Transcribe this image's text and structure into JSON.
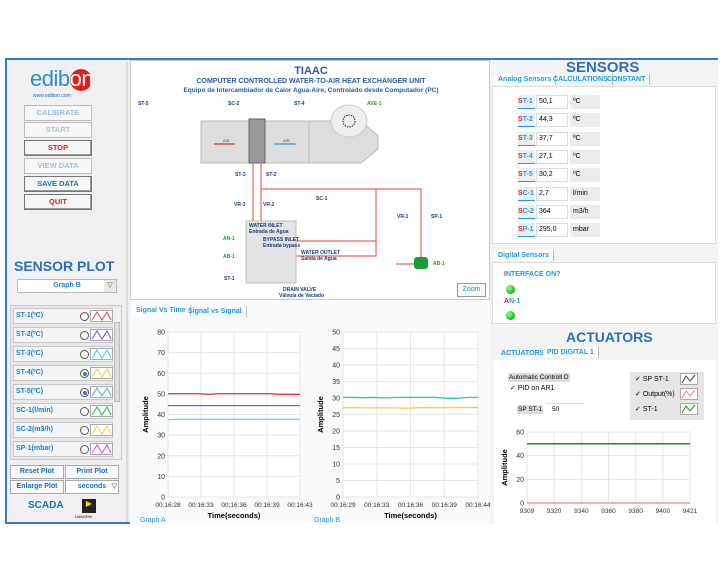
{
  "left": {
    "logo": {
      "text_a": "edib",
      "text_b": "on",
      "url": "www.edibon.com"
    },
    "buttons": [
      {
        "label": "CALIBRATE",
        "enabled": false,
        "color": "#9bbfe0"
      },
      {
        "label": "START",
        "enabled": false,
        "color": "#a8d0b0"
      },
      {
        "label": "STOP",
        "enabled": true,
        "color": "#e0201c"
      },
      {
        "label": "VIEW DATA",
        "enabled": false,
        "color": "#9bbfe0"
      },
      {
        "label": "SAVE DATA",
        "enabled": true,
        "color": "#1a6fbf"
      },
      {
        "label": "QUIT",
        "enabled": true,
        "color": "#e0201c"
      }
    ],
    "sensor_plot_title": "SENSOR PLOT",
    "graph_select": "Graph B",
    "plot_items": [
      {
        "label": "ST-1(ºC)",
        "selected": false,
        "color": "#ff4040"
      },
      {
        "label": "ST-2(ºC)",
        "selected": false,
        "color": "#6a5ae0"
      },
      {
        "label": "ST-3(ºC)",
        "selected": false,
        "color": "#30d0e0"
      },
      {
        "label": "ST-4(ºC)",
        "selected": true,
        "color": "#f0d040"
      },
      {
        "label": "ST-5(ºC)",
        "selected": true,
        "color": "#30c0c0"
      },
      {
        "label": "SC-1(l/min)",
        "selected": false,
        "color": "#20c040"
      },
      {
        "label": "SC-2(m3/h)",
        "selected": false,
        "color": "#e0e030"
      },
      {
        "label": "SP-1(mbar)",
        "selected": false,
        "color": "#e040e0"
      }
    ],
    "reset_plot": "Reset Plot",
    "print_plot": "Print Plot",
    "enlarge_plot": "Enlarge Plot",
    "time_unit": "seconds",
    "scada_logo": "SCADA",
    "labview_logo": "LabVIEW"
  },
  "diagram": {
    "title": "TIAAC",
    "subtitle": "COMPUTER CONTROLLED WATER-TO-AIR HEAT EXCHANGER UNIT",
    "subtitle_es": "Equipo de Intercambiador de Calor Agua-Aire, Controlado desde Computador (PC)",
    "labels": {
      "st5": "ST-5",
      "sc2": "SC-2",
      "st4": "ST-4",
      "ave1": "AVE-1",
      "air1": "AIR",
      "air2": "AIR",
      "st3": "ST-3",
      "st2": "ST-2",
      "sc1": "SC-1",
      "vr3": "VR-3",
      "vr2": "VR-2",
      "vr1": "VR-1",
      "sp1": "SP-1",
      "an1": "AN-1",
      "ab1a": "AB-1",
      "st1": "ST-1",
      "ab1b": "AB-1",
      "water_inlet": "WATER INLET",
      "water_inlet_es": "Entrada de Agua",
      "bypass": "BYPASS INLET",
      "bypass_es": "Entrada bypass",
      "water_outlet": "WATER OUTLET",
      "water_outlet_es": "Salida de Agua",
      "drain": "DRAIN VALVE",
      "drain_es": "Válvula de Vaciado"
    },
    "zoom_button": "Zoom"
  },
  "graph_tabs": [
    "Signal Vs Time",
    "Signal vs Signal"
  ],
  "chart_data": [
    {
      "type": "line",
      "name": "Graph A",
      "xlabel": "Time(seconds)",
      "ylabel": "Amplitude",
      "ylim": [
        0,
        80
      ],
      "yticks": [
        0,
        10,
        20,
        30,
        40,
        50,
        60,
        70,
        80
      ],
      "xticks": [
        "00:16:28",
        "00:16:33",
        "00:16:36",
        "00:16:39",
        "00:16:43"
      ],
      "grid": true,
      "series": [
        {
          "color": "#e84040",
          "values": [
            50.1,
            50.1,
            50.1,
            50.1,
            49.8,
            50.1,
            50.1,
            50.1,
            50.1,
            50.1,
            50.1,
            49.8,
            49.8,
            49.8
          ]
        },
        {
          "color": "#6a6ae8",
          "values": [
            44.3,
            44.3,
            44.3,
            44.3,
            44.3,
            44.3,
            44.3,
            44.3,
            44.3,
            44.3,
            44.3,
            44.3,
            44.3,
            44.3
          ]
        },
        {
          "color": "#50e0f0",
          "values": [
            37.5,
            37.7,
            37.7,
            37.7,
            37.7,
            37.7,
            37.7,
            37.7,
            37.7,
            37.7,
            37.7,
            37.7,
            37.7,
            37.7
          ]
        }
      ]
    },
    {
      "type": "line",
      "name": "Graph B",
      "xlabel": "Time(seconds)",
      "ylabel": "Amplitude",
      "ylim": [
        0,
        50
      ],
      "yticks": [
        0,
        5,
        10,
        15,
        20,
        25,
        30,
        35,
        40,
        45,
        50
      ],
      "xticks": [
        "00:16:29",
        "00:16:33",
        "00:16:36",
        "00:16:39",
        "00:16:44"
      ],
      "grid": true,
      "series": [
        {
          "color": "#30c8b8",
          "values": [
            30.2,
            30.2,
            30.1,
            30.2,
            30.0,
            30.2,
            30.2,
            30.2,
            30.2,
            30.2,
            29.9,
            29.9,
            30.2,
            30.2
          ]
        },
        {
          "color": "#f0d040",
          "values": [
            27.0,
            27.1,
            27.0,
            27.0,
            27.0,
            27.0,
            26.9,
            27.0,
            27.1,
            27.0,
            27.1,
            27.1,
            27.1,
            27.1
          ]
        }
      ]
    },
    {
      "type": "line",
      "name": "PID",
      "ylabel": "Amplitude",
      "ylim": [
        0,
        60
      ],
      "yticks": [
        0,
        20,
        40,
        60
      ],
      "xlim": [
        9309,
        9421
      ],
      "xticks": [
        "9309",
        "9320",
        "9340",
        "9360",
        "9380",
        "9400",
        "9421"
      ],
      "grid": true,
      "series": [
        {
          "name": "SP ST-1",
          "color": "#444444",
          "values": [
            50,
            50
          ]
        },
        {
          "name": "Output(%)",
          "color": "#f08080",
          "values": [
            0,
            0
          ]
        },
        {
          "name": "ST-1",
          "color": "#1a8a1a",
          "values": [
            50,
            50
          ]
        }
      ]
    }
  ],
  "sensors": {
    "title": "SENSORS",
    "tabs": [
      "Analog Sensors",
      "CALCULATIONS",
      "CONSTANT"
    ],
    "rows": [
      {
        "first": "S",
        "rest": "T-1",
        "value": "50,1",
        "unit": "ºC"
      },
      {
        "first": "S",
        "rest": "T-2",
        "value": "44,3",
        "unit": "ºC"
      },
      {
        "first": "S",
        "rest": "T-3",
        "value": "37,7",
        "unit": "ºC"
      },
      {
        "first": "S",
        "rest": "T-4",
        "value": "27,1",
        "unit": "ºC"
      },
      {
        "first": "S",
        "rest": "T-5",
        "value": "30,2",
        "unit": "ºC"
      },
      {
        "first": "S",
        "rest": "C-1",
        "value": "2,7",
        "unit": "l/min"
      },
      {
        "first": "S",
        "rest": "C-2",
        "value": "364",
        "unit": "m3/h"
      },
      {
        "first": "S",
        "rest": "P-1",
        "value": "295,0",
        "unit": "mbar"
      }
    ],
    "digital_tab": "Digital Sensors",
    "interface_first": "I",
    "interface_rest": "NTERFACE ON?",
    "interface_on": true,
    "an1_first": "A",
    "an1_rest": "N-1",
    "an1_on": true
  },
  "actuators": {
    "title": "ACTUATORS",
    "tabs": [
      "ACTUATORS",
      "PID DIGITAL 1"
    ],
    "auto_label": "Automatic Controll D",
    "pid_on": "PID on AR1",
    "sp_label": "SP ST-1",
    "sp_value": "50",
    "legend": [
      "SP ST-1",
      "Output(%)",
      "ST-1"
    ]
  }
}
